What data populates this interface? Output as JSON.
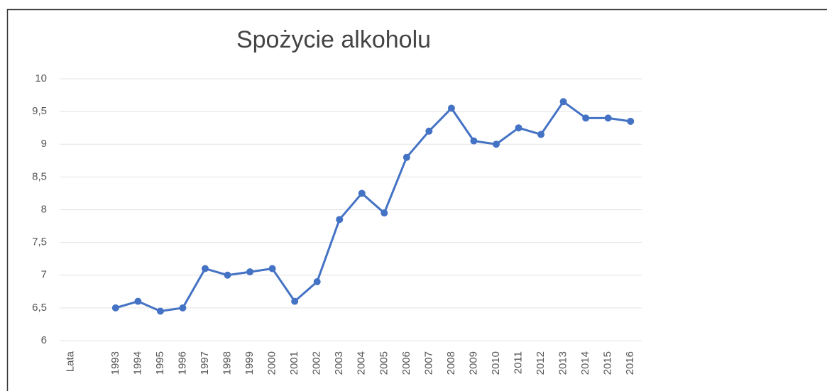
{
  "chart_data": {
    "type": "line",
    "title": "Spożycie alkoholu",
    "categories": [
      "Lata",
      null,
      "1993",
      "1994",
      "1995",
      "1996",
      "1997",
      "1998",
      "1999",
      "2000",
      "2001",
      "2002",
      "2003",
      "2004",
      "2005",
      "2006",
      "2007",
      "2008",
      "2009",
      "2010",
      "2011",
      "2012",
      "2013",
      "2014",
      "2015",
      "2016"
    ],
    "series": [
      {
        "color": "#4472c4",
        "values": [
          null,
          null,
          6.5,
          6.6,
          6.45,
          6.5,
          7.1,
          7.0,
          7.05,
          7.1,
          6.6,
          6.9,
          7.85,
          8.25,
          7.95,
          8.8,
          9.2,
          9.55,
          9.05,
          9.0,
          9.25,
          9.15,
          9.65,
          9.4,
          9.4,
          9.35
        ]
      }
    ],
    "ylim": [
      6,
      10
    ],
    "yticks": [
      6,
      {
        "value": 6.5,
        "label": "6,5"
      },
      7,
      {
        "value": 7.5,
        "label": "7,5"
      },
      8,
      {
        "value": 8.5,
        "label": "8,5"
      },
      9,
      {
        "value": 9.5,
        "label": "9,5"
      },
      10
    ],
    "grid": true
  }
}
